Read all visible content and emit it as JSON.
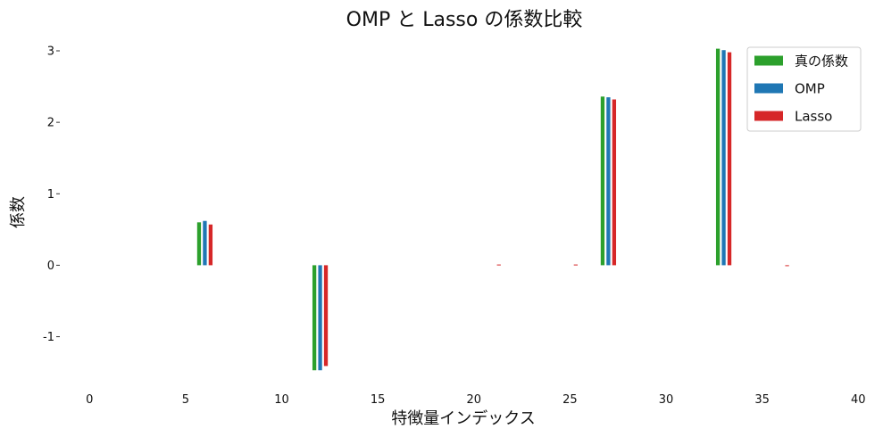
{
  "chart_data": {
    "type": "bar",
    "title": "OMP と Lasso の係数比較",
    "xlabel": "特徴量インデックス",
    "ylabel": "係数",
    "xlim": [
      -1.5,
      40.5
    ],
    "ylim": [
      -1.48,
      3.05
    ],
    "xticks": [
      0,
      5,
      10,
      15,
      20,
      25,
      30,
      35,
      40
    ],
    "xtick_labels": [
      "0",
      "5",
      "10",
      "15",
      "20",
      "25",
      "30",
      "35",
      "40"
    ],
    "yticks": [
      -1,
      0,
      1,
      2,
      3
    ],
    "ytick_labels": [
      "-1",
      "0",
      "1",
      "2",
      "3"
    ],
    "grid": false,
    "legend_position": "top-right",
    "series": [
      {
        "name": "真の係数",
        "color": "#2ca02c",
        "offset": -0.3,
        "points": [
          {
            "x": 6,
            "y": 0.6
          },
          {
            "x": 12,
            "y": -1.47
          },
          {
            "x": 27,
            "y": 2.36
          },
          {
            "x": 33,
            "y": 3.03
          }
        ]
      },
      {
        "name": "OMP",
        "color": "#1f77b4",
        "offset": 0.0,
        "points": [
          {
            "x": 6,
            "y": 0.62
          },
          {
            "x": 12,
            "y": -1.47
          },
          {
            "x": 27,
            "y": 2.35
          },
          {
            "x": 33,
            "y": 3.01
          }
        ]
      },
      {
        "name": "Lasso",
        "color": "#d62728",
        "offset": 0.3,
        "points": [
          {
            "x": 6,
            "y": 0.57
          },
          {
            "x": 12,
            "y": -1.41
          },
          {
            "x": 21,
            "y": 0.01
          },
          {
            "x": 25,
            "y": 0.01
          },
          {
            "x": 27,
            "y": 2.32
          },
          {
            "x": 33,
            "y": 2.98
          },
          {
            "x": 36,
            "y": -0.01
          }
        ]
      }
    ]
  }
}
